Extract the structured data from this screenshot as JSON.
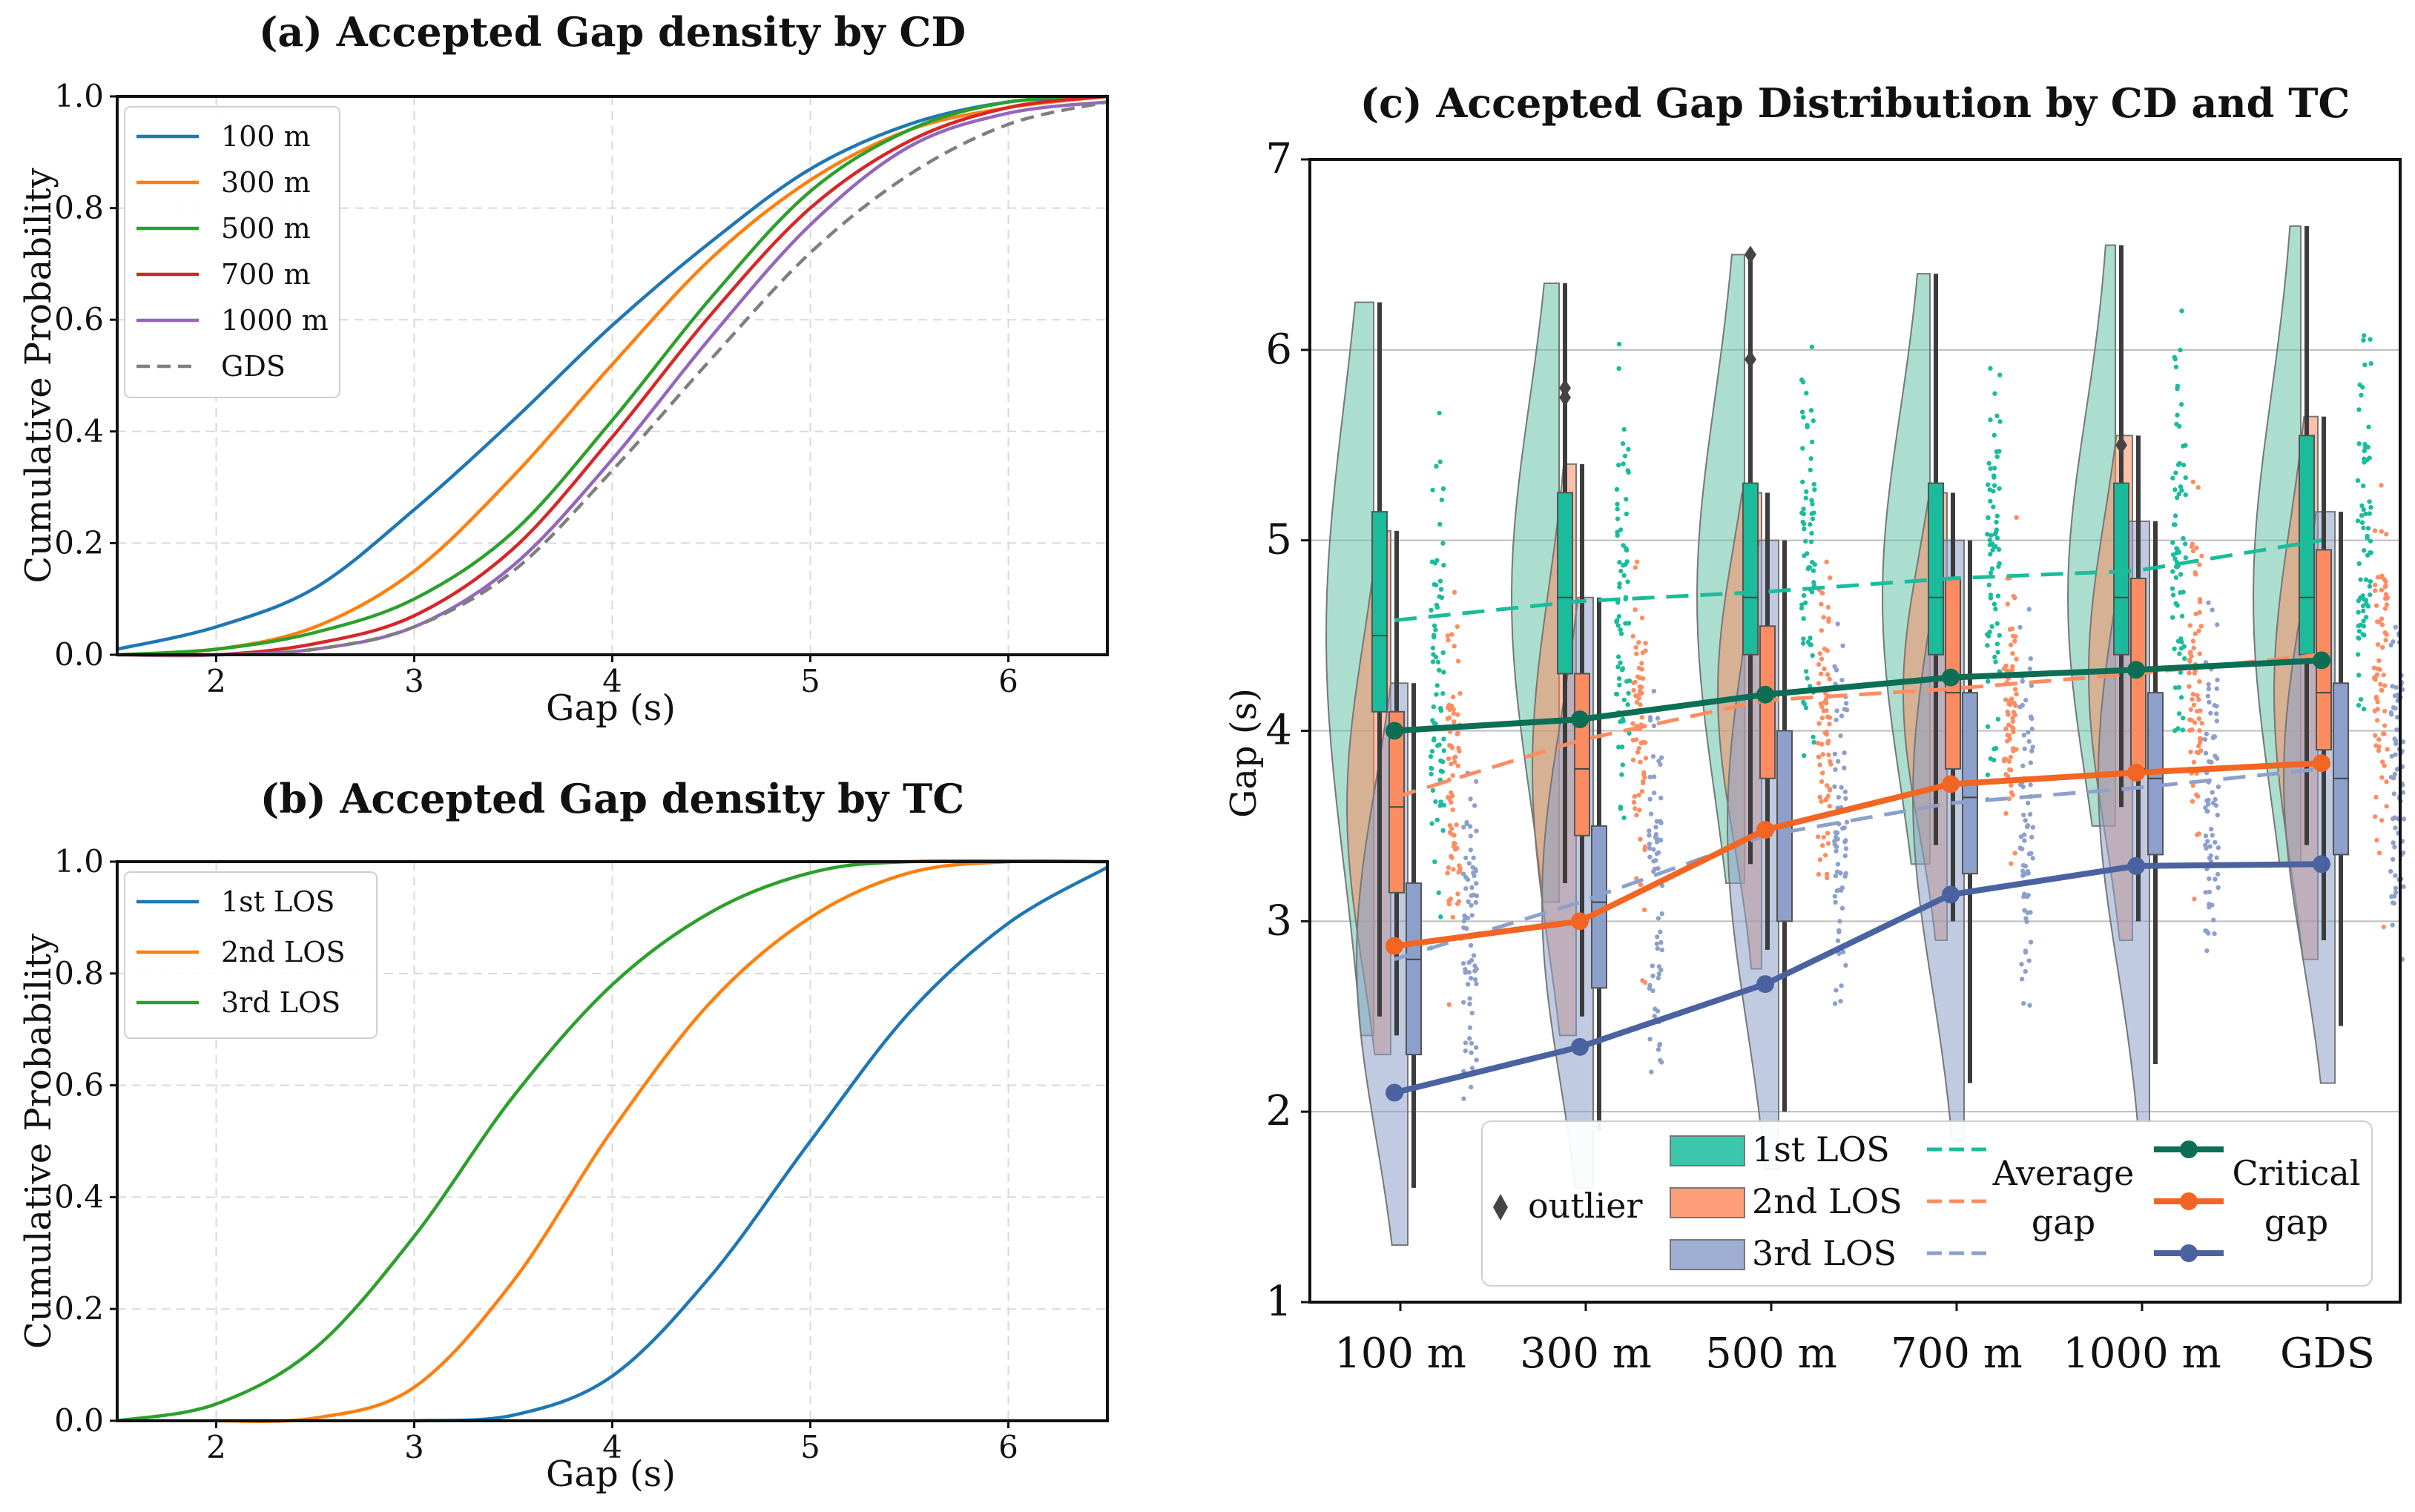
{
  "colors": {
    "cd": [
      "#1f77b4",
      "#ff7f0e",
      "#2ca02c",
      "#d62728",
      "#9467bd",
      "#7f7f7f"
    ],
    "los1": "#1abc9c",
    "los1_dark": "#0b6e55",
    "los1_fill": "#66c2a5",
    "los2": "#fc8d62",
    "los2_dark": "#f26522",
    "los2_fill": "#fc8d62",
    "los3": "#8da0cb",
    "los3_dark": "#4a63a0",
    "los3_fill": "#8da0cb"
  },
  "chart_data": [
    {
      "id": "a",
      "type": "line",
      "title": "(a) Accepted Gap density by CD",
      "xlabel": "Gap (s)",
      "ylabel": "Cumulative Probability",
      "xlim": [
        1.5,
        6.5
      ],
      "ylim": [
        0,
        1
      ],
      "xticks": [
        2,
        3,
        4,
        5,
        6
      ],
      "yticks": [
        0.0,
        0.2,
        0.4,
        0.6,
        0.8,
        1.0
      ],
      "ytick_labels": [
        "0.0",
        "0.2",
        "0.4",
        "0.6",
        "0.8",
        "1.0"
      ],
      "legend": "top-left",
      "grid": true,
      "series": [
        {
          "name": "100 m",
          "style": "solid",
          "values": [
            [
              1.5,
              0.01
            ],
            [
              2.0,
              0.05
            ],
            [
              2.5,
              0.12
            ],
            [
              3.0,
              0.26
            ],
            [
              3.5,
              0.42
            ],
            [
              4.0,
              0.59
            ],
            [
              4.5,
              0.74
            ],
            [
              5.0,
              0.87
            ],
            [
              5.5,
              0.95
            ],
            [
              6.0,
              0.99
            ],
            [
              6.5,
              1.0
            ]
          ]
        },
        {
          "name": "300 m",
          "style": "solid",
          "values": [
            [
              1.5,
              0.0
            ],
            [
              2.0,
              0.01
            ],
            [
              2.5,
              0.05
            ],
            [
              3.0,
              0.15
            ],
            [
              3.5,
              0.32
            ],
            [
              4.0,
              0.52
            ],
            [
              4.5,
              0.71
            ],
            [
              5.0,
              0.85
            ],
            [
              5.5,
              0.94
            ],
            [
              6.0,
              0.98
            ],
            [
              6.5,
              1.0
            ]
          ]
        },
        {
          "name": "500 m",
          "style": "solid",
          "values": [
            [
              1.5,
              0.0
            ],
            [
              2.0,
              0.01
            ],
            [
              2.5,
              0.04
            ],
            [
              3.0,
              0.1
            ],
            [
              3.5,
              0.22
            ],
            [
              4.0,
              0.42
            ],
            [
              4.5,
              0.64
            ],
            [
              5.0,
              0.83
            ],
            [
              5.5,
              0.94
            ],
            [
              6.0,
              0.99
            ],
            [
              6.5,
              1.0
            ]
          ]
        },
        {
          "name": "700 m",
          "style": "solid",
          "values": [
            [
              1.5,
              0.0
            ],
            [
              2.0,
              0.0
            ],
            [
              2.5,
              0.02
            ],
            [
              3.0,
              0.07
            ],
            [
              3.5,
              0.19
            ],
            [
              4.0,
              0.39
            ],
            [
              4.5,
              0.61
            ],
            [
              5.0,
              0.8
            ],
            [
              5.5,
              0.92
            ],
            [
              6.0,
              0.98
            ],
            [
              6.5,
              1.0
            ]
          ]
        },
        {
          "name": "1000 m",
          "style": "solid",
          "values": [
            [
              1.5,
              0.0
            ],
            [
              2.0,
              0.0
            ],
            [
              2.5,
              0.01
            ],
            [
              3.0,
              0.05
            ],
            [
              3.5,
              0.16
            ],
            [
              4.0,
              0.35
            ],
            [
              4.5,
              0.57
            ],
            [
              5.0,
              0.77
            ],
            [
              5.5,
              0.91
            ],
            [
              6.0,
              0.97
            ],
            [
              6.5,
              0.99
            ]
          ]
        },
        {
          "name": "GDS",
          "style": "dashed",
          "values": [
            [
              1.5,
              0.0
            ],
            [
              2.0,
              0.0
            ],
            [
              2.5,
              0.01
            ],
            [
              3.0,
              0.05
            ],
            [
              3.5,
              0.15
            ],
            [
              4.0,
              0.33
            ],
            [
              4.5,
              0.53
            ],
            [
              5.0,
              0.72
            ],
            [
              5.5,
              0.86
            ],
            [
              6.0,
              0.95
            ],
            [
              6.5,
              0.99
            ]
          ]
        }
      ]
    },
    {
      "id": "b",
      "type": "line",
      "title": "(b) Accepted Gap density by TC",
      "xlabel": "Gap (s)",
      "ylabel": "Cumulative Probability",
      "xlim": [
        1.5,
        6.5
      ],
      "ylim": [
        0,
        1
      ],
      "xticks": [
        2,
        3,
        4,
        5,
        6
      ],
      "yticks": [
        0.0,
        0.2,
        0.4,
        0.6,
        0.8,
        1.0
      ],
      "ytick_labels": [
        "0.0",
        "0.2",
        "0.4",
        "0.6",
        "0.8",
        "1.0"
      ],
      "legend": "top-left",
      "grid": true,
      "series": [
        {
          "name": "1st LOS",
          "style": "solid",
          "values": [
            [
              3.0,
              0.0
            ],
            [
              3.5,
              0.01
            ],
            [
              4.0,
              0.08
            ],
            [
              4.5,
              0.26
            ],
            [
              5.0,
              0.5
            ],
            [
              5.5,
              0.73
            ],
            [
              6.0,
              0.89
            ],
            [
              6.5,
              0.99
            ]
          ]
        },
        {
          "name": "2nd LOS",
          "style": "solid",
          "values": [
            [
              2.0,
              0.0
            ],
            [
              2.5,
              0.005
            ],
            [
              3.0,
              0.06
            ],
            [
              3.5,
              0.25
            ],
            [
              4.0,
              0.52
            ],
            [
              4.5,
              0.75
            ],
            [
              5.0,
              0.9
            ],
            [
              5.5,
              0.98
            ],
            [
              6.0,
              1.0
            ],
            [
              6.5,
              1.0
            ]
          ]
        },
        {
          "name": "3rd LOS",
          "style": "solid",
          "values": [
            [
              1.5,
              0.0
            ],
            [
              2.0,
              0.03
            ],
            [
              2.5,
              0.13
            ],
            [
              3.0,
              0.33
            ],
            [
              3.5,
              0.58
            ],
            [
              4.0,
              0.78
            ],
            [
              4.5,
              0.91
            ],
            [
              5.0,
              0.98
            ],
            [
              5.5,
              1.0
            ],
            [
              6.5,
              1.0
            ]
          ]
        }
      ]
    },
    {
      "id": "c",
      "type": "box",
      "title": "(c) Accepted Gap Distribution by CD and TC",
      "ylabel": "Gap (s)",
      "ylim": [
        1,
        7
      ],
      "yticks": [
        1,
        2,
        3,
        4,
        5,
        6,
        7
      ],
      "categories": [
        "100 m",
        "300 m",
        "500 m",
        "700 m",
        "1000 m",
        "GDS"
      ],
      "grid": true,
      "legend": "bottom-right",
      "box_series": [
        {
          "name": "1st LOS",
          "q1": [
            4.1,
            4.3,
            4.4,
            4.4,
            4.4,
            4.4
          ],
          "median": [
            4.5,
            4.7,
            4.7,
            4.7,
            4.7,
            4.7
          ],
          "q3": [
            5.15,
            5.25,
            5.3,
            5.3,
            5.3,
            5.55
          ],
          "whisker_low": [
            2.5,
            3.2,
            3.3,
            3.4,
            3.6,
            3.4
          ],
          "whisker_high": [
            6.25,
            6.35,
            6.5,
            6.4,
            6.55,
            6.65
          ],
          "outliers": [
            [],
            [
              5.75,
              5.8
            ],
            [
              6.5,
              5.95
            ],
            [],
            [
              5.5
            ],
            []
          ]
        },
        {
          "name": "2nd LOS",
          "q1": [
            3.15,
            3.45,
            3.75,
            3.8,
            3.8,
            3.9
          ],
          "median": [
            3.6,
            3.8,
            4.2,
            4.2,
            4.3,
            4.2
          ],
          "q3": [
            4.1,
            4.3,
            4.55,
            4.8,
            4.8,
            4.95
          ],
          "whisker_low": [
            2.4,
            2.5,
            2.85,
            3.0,
            3.0,
            2.9
          ],
          "whisker_high": [
            5.05,
            5.4,
            5.25,
            5.25,
            5.55,
            5.65
          ],
          "outliers": [
            [],
            [],
            [],
            [],
            [],
            []
          ]
        },
        {
          "name": "3rd LOS",
          "q1": [
            2.3,
            2.65,
            3.0,
            3.25,
            3.35,
            3.35
          ],
          "median": [
            2.8,
            3.1,
            3.5,
            3.65,
            3.75,
            3.75
          ],
          "q3": [
            3.2,
            3.5,
            4.0,
            4.2,
            4.2,
            4.25
          ],
          "whisker_low": [
            1.6,
            1.9,
            2.0,
            2.15,
            2.25,
            2.45
          ],
          "whisker_high": [
            4.25,
            4.7,
            5.0,
            5.0,
            5.1,
            5.15
          ],
          "outliers": [
            [],
            [],
            [],
            [],
            [],
            []
          ]
        }
      ],
      "average_gap": [
        {
          "name": "1st LOS",
          "values": [
            4.58,
            4.68,
            4.73,
            4.8,
            4.84,
            5.0
          ]
        },
        {
          "name": "2nd LOS",
          "values": [
            3.65,
            3.95,
            4.16,
            4.22,
            4.3,
            4.4
          ]
        },
        {
          "name": "3rd LOS",
          "values": [
            2.8,
            3.1,
            3.45,
            3.62,
            3.7,
            3.8
          ]
        }
      ],
      "critical_gap": [
        {
          "name": "1st LOS",
          "values": [
            4.0,
            4.06,
            4.19,
            4.28,
            4.32,
            4.37
          ]
        },
        {
          "name": "2nd LOS",
          "values": [
            2.87,
            3.0,
            3.48,
            3.72,
            3.78,
            3.83
          ]
        },
        {
          "name": "3rd LOS",
          "values": [
            2.1,
            2.34,
            2.67,
            3.14,
            3.29,
            3.3
          ]
        }
      ],
      "legend_labels": {
        "outlier": "outlier",
        "los": [
          "1st LOS",
          "2nd LOS",
          "3rd LOS"
        ],
        "average_l1": "Average",
        "average_l2": "gap",
        "critical_l1": "Critical",
        "critical_l2": "gap"
      }
    }
  ]
}
